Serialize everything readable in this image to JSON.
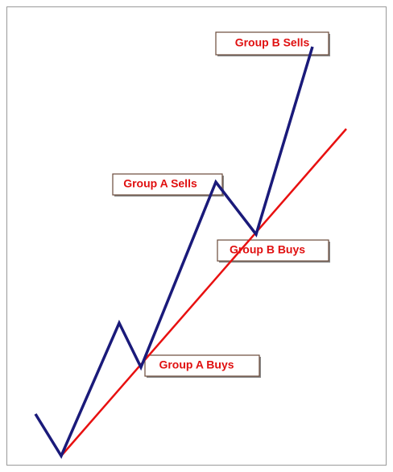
{
  "labels": [
    "Group B Sells",
    "Group A Sells",
    "Group B Buys",
    "Group A Buys"
  ]
}
